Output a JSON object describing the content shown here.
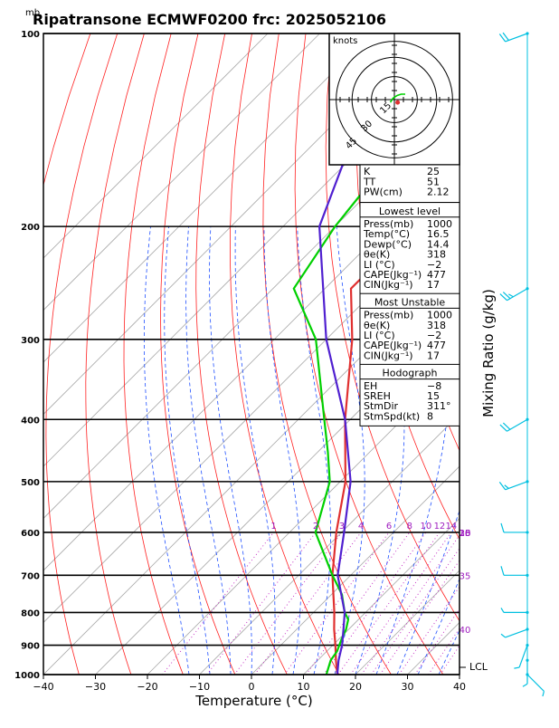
{
  "page": {
    "title": "Ripatransone ECMWF0200 frc: 2025052106",
    "unit_corner": "mb",
    "xlabel": "Temperature (°C)",
    "right_label": "Mixing Ratio (g/kg)",
    "lcl_label": "LCL"
  },
  "colors": {
    "temperature": "#e03030",
    "dewpoint": "#00d000",
    "parcel": "#5020d0",
    "isotherm": "#aaaaaa",
    "dry_adiabat": "#ff2020",
    "moist_adiabat": "#2050ff",
    "mixing_ratio": "#c020c0",
    "wind_barb": "#00c0e0"
  },
  "chart_data": {
    "type": "line",
    "subtype": "skew-T log-P sounding",
    "x_axis": {
      "label": "Temperature (°C)",
      "range": [
        -40,
        40
      ],
      "ticks": [
        "−40",
        "−30",
        "−20",
        "−10",
        "0",
        "10",
        "20",
        "30",
        "40"
      ]
    },
    "y_axis": {
      "unit": "mb",
      "scale": "log",
      "range": [
        1000,
        100
      ],
      "ticks": [
        "100",
        "200",
        "300",
        "400",
        "500",
        "600",
        "700",
        "800",
        "900",
        "1000"
      ]
    },
    "series": [
      {
        "role": "temperature",
        "points": [
          [
            1000,
            16.5
          ],
          [
            950,
            13.5
          ],
          [
            900,
            10.5
          ],
          [
            850,
            7.2
          ],
          [
            800,
            4.0
          ],
          [
            700,
            -3.5
          ],
          [
            600,
            -11.0
          ],
          [
            500,
            -19.0
          ],
          [
            400,
            -31.0
          ],
          [
            300,
            -45.0
          ],
          [
            250,
            -55.0
          ],
          [
            200,
            -55.0
          ],
          [
            150,
            -57.0
          ],
          [
            100,
            -60.0
          ]
        ]
      },
      {
        "role": "dewpoint",
        "points": [
          [
            1000,
            14.4
          ],
          [
            950,
            12.5
          ],
          [
            920,
            12.0
          ],
          [
            880,
            10.5
          ],
          [
            850,
            9.5
          ],
          [
            820,
            8.0
          ],
          [
            800,
            6.0
          ],
          [
            750,
            2.0
          ],
          [
            700,
            -3.5
          ],
          [
            600,
            -15.0
          ],
          [
            500,
            -22.0
          ],
          [
            450,
            -28.0
          ],
          [
            400,
            -35.0
          ],
          [
            300,
            -52.0
          ],
          [
            250,
            -66.0
          ],
          [
            200,
            -70.0
          ],
          [
            150,
            -73.0
          ],
          [
            100,
            -76.0
          ]
        ]
      },
      {
        "role": "parcel",
        "points": [
          [
            1000,
            16.5
          ],
          [
            950,
            14.0
          ],
          [
            900,
            11.8
          ],
          [
            850,
            9.0
          ],
          [
            800,
            6.0
          ],
          [
            700,
            -2.5
          ],
          [
            600,
            -9.5
          ],
          [
            500,
            -18.0
          ],
          [
            400,
            -31.0
          ],
          [
            300,
            -50.0
          ],
          [
            200,
            -73.0
          ],
          [
            120,
            -90.0
          ]
        ]
      }
    ],
    "mixing_ratio_labels": [
      "1",
      "2",
      "3",
      "4",
      "6",
      "8",
      "10",
      "12",
      "14",
      "16",
      "18",
      "20",
      "25",
      "30",
      "35",
      "40"
    ],
    "wind_profile": [
      {
        "p": 1000,
        "dir": 135,
        "spd": 5
      },
      {
        "p": 950,
        "dir": 180,
        "spd": 5
      },
      {
        "p": 900,
        "dir": 200,
        "spd": 5
      },
      {
        "p": 850,
        "dir": 250,
        "spd": 5
      },
      {
        "p": 800,
        "dir": 270,
        "spd": 5
      },
      {
        "p": 700,
        "dir": 270,
        "spd": 10
      },
      {
        "p": 600,
        "dir": 270,
        "spd": 10
      },
      {
        "p": 500,
        "dir": 250,
        "spd": 15
      },
      {
        "p": 400,
        "dir": 240,
        "spd": 20
      },
      {
        "p": 250,
        "dir": 240,
        "spd": 25
      },
      {
        "p": 100,
        "dir": 250,
        "spd": 20
      }
    ]
  },
  "hodograph": {
    "unit": "knots",
    "ring_labels": [
      "15",
      "30",
      "45"
    ],
    "trace": [
      [
        -3,
        -2
      ],
      [
        -1,
        1
      ],
      [
        2,
        3
      ],
      [
        5,
        4
      ],
      [
        8,
        4
      ]
    ],
    "storm_motion": {
      "dir": 311,
      "spd": 8
    }
  },
  "indices": {
    "top": [
      {
        "label": "K",
        "value": "25"
      },
      {
        "label": "TT",
        "value": "51"
      },
      {
        "label": "PW(cm)",
        "value": "2.12"
      }
    ],
    "lowest": {
      "header": "Lowest level",
      "rows": [
        {
          "label": "Press(mb)",
          "value": "1000"
        },
        {
          "label": "Temp(°C)",
          "value": "16.5"
        },
        {
          "label": "Dewp(°C)",
          "value": "14.4"
        },
        {
          "label": "θe(K)",
          "value": "318"
        },
        {
          "label": "LI (°C)",
          "value": "−2"
        },
        {
          "label": "CAPE(Jkg⁻¹)",
          "value": "477"
        },
        {
          "label": "CIN(Jkg⁻¹)",
          "value": "17"
        }
      ]
    },
    "unstable": {
      "header": "Most Unstable",
      "rows": [
        {
          "label": "Press(mb)",
          "value": "1000"
        },
        {
          "label": "θe(K)",
          "value": "318"
        },
        {
          "label": "LI (°C)",
          "value": "−2"
        },
        {
          "label": "CAPE(Jkg⁻¹)",
          "value": "477"
        },
        {
          "label": "CIN(Jkg⁻¹)",
          "value": "17"
        }
      ]
    },
    "hodo": {
      "header": "Hodograph",
      "rows": [
        {
          "label": "EH",
          "value": "−8"
        },
        {
          "label": "SREH",
          "value": "15"
        },
        {
          "label": "StmDir",
          "value": "311°"
        },
        {
          "label": "StmSpd(kt)",
          "value": "8"
        }
      ]
    }
  }
}
